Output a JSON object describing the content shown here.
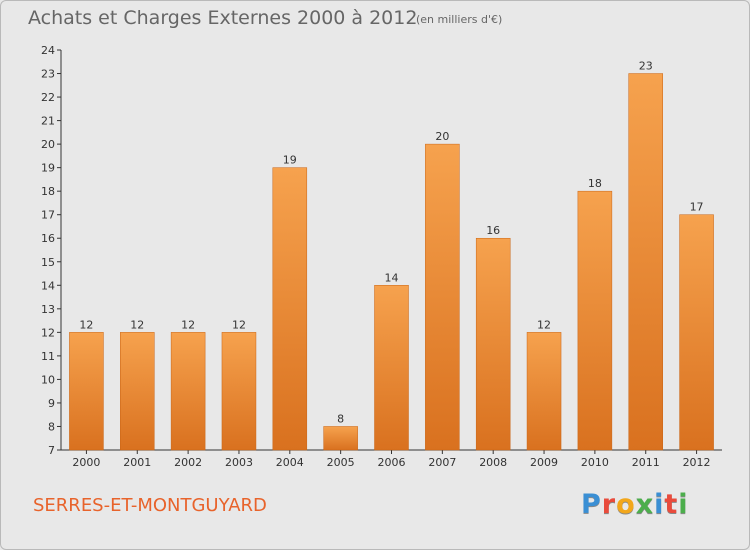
{
  "header": {
    "title": "Achats et Charges Externes 2000 à 2012",
    "subtitle": "(en milliers d'€)"
  },
  "footer": {
    "town": "SERRES-ET-MONTGUYARD",
    "logo_text": "Proxiti",
    "logo_colors": [
      "#3a8fd4",
      "#e94b3c",
      "#f2a71b",
      "#4cae4c",
      "#3a8fd4",
      "#e94b3c",
      "#4cae4c"
    ]
  },
  "chart_data": {
    "type": "bar",
    "title": "Achats et Charges Externes 2000 à 2012",
    "subtitle": "(en milliers d'€)",
    "xlabel": "",
    "ylabel": "",
    "categories": [
      "2000",
      "2001",
      "2002",
      "2003",
      "2004",
      "2005",
      "2006",
      "2007",
      "2008",
      "2009",
      "2010",
      "2011",
      "2012"
    ],
    "values": [
      12,
      12,
      12,
      12,
      19,
      8,
      14,
      20,
      16,
      12,
      18,
      23,
      17
    ],
    "ylim": [
      7,
      24
    ],
    "yticks": [
      7,
      8,
      9,
      10,
      11,
      12,
      13,
      14,
      15,
      16,
      17,
      18,
      19,
      20,
      21,
      22,
      23,
      24
    ],
    "grid": false,
    "colors": {
      "bar_top": "#f6a24e",
      "bar_bottom": "#d9711f",
      "bar_edge": "#c96414"
    }
  }
}
